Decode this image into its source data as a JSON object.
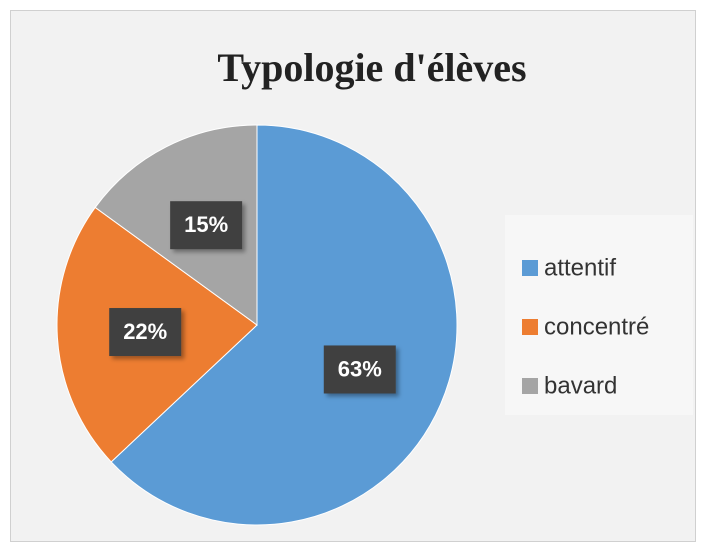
{
  "chart_data": {
    "type": "pie",
    "title": "Typologie d'élèves",
    "categories": [
      "attentif",
      "concentré",
      "bavard"
    ],
    "values": [
      63,
      22,
      15
    ],
    "value_labels": [
      "63%",
      "22%",
      "15%"
    ],
    "colors": [
      "#5b9bd5",
      "#ed7d31",
      "#a5a5a5"
    ],
    "legend": "right"
  }
}
